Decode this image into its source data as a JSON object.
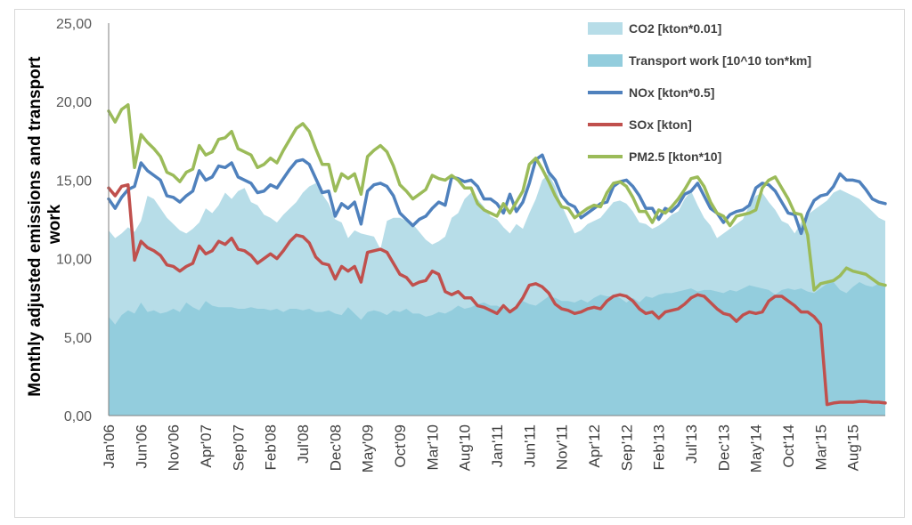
{
  "chart_data": {
    "type": "area",
    "title": "",
    "ylabel_lines": [
      "Monthly adjusted emissions  and transport",
      "work"
    ],
    "ylim": [
      0,
      25
    ],
    "yticks": [
      "0,00",
      "5,00",
      "10,00",
      "15,00",
      "20,00",
      "25,00"
    ],
    "grid": false,
    "legend_position": "top-right",
    "x_tick_labels": [
      "Jan'06",
      "Jun'06",
      "Nov'06",
      "Apr'07",
      "Sep'07",
      "Feb'08",
      "Jul'08",
      "Dec'08",
      "May'09",
      "Oct'09",
      "Mar'10",
      "Aug'10",
      "Jan'11",
      "Jun'11",
      "Nov'11",
      "Apr'12",
      "Sep'12",
      "Feb'13",
      "Jul'13",
      "Dec'13",
      "May'14",
      "Oct'14",
      "Mar'15",
      "Aug'15"
    ],
    "months": 121,
    "series": [
      {
        "name": "CO2 [kton*0.01]",
        "kind": "area",
        "color": "#b7dde8",
        "values": [
          11.8,
          11.3,
          11.6,
          12.0,
          11.7,
          12.4,
          14.0,
          13.8,
          13.2,
          12.6,
          12.2,
          11.8,
          11.6,
          11.9,
          12.3,
          13.2,
          12.9,
          13.4,
          14.2,
          13.8,
          14.3,
          14.5,
          13.6,
          13.4,
          12.8,
          12.6,
          12.3,
          12.8,
          13.2,
          13.6,
          14.2,
          14.6,
          14.8,
          14.1,
          13.5,
          12.5,
          12.3,
          11.3,
          11.8,
          11.6,
          11.5,
          11.4,
          10.6,
          12.4,
          12.6,
          12.6,
          12.4,
          12.2,
          11.7,
          11.2,
          10.9,
          11.1,
          11.4,
          12.6,
          12.9,
          13.8,
          14.2,
          13.8,
          13.3,
          12.7,
          12.5,
          12.0,
          11.6,
          12.2,
          11.9,
          12.9,
          13.8,
          15.0,
          15.4,
          14.6,
          13.4,
          12.5,
          11.6,
          11.8,
          12.2,
          12.4,
          12.6,
          13.1,
          13.6,
          13.7,
          13.5,
          13.0,
          12.3,
          12.2,
          11.9,
          12.1,
          12.4,
          12.8,
          13.0,
          13.8,
          14.3,
          13.4,
          12.6,
          12.1,
          11.3,
          11.6,
          11.9,
          12.2,
          12.5,
          13.4,
          14.0,
          14.2,
          13.6,
          13.1,
          12.4,
          12.2,
          11.6,
          12.3,
          12.8,
          13.1,
          13.4,
          13.7,
          14.2,
          14.4,
          14.2,
          14.0,
          13.8,
          13.4,
          13.0,
          12.6,
          12.4
        ]
      },
      {
        "name": "Transport work [10^10 ton*km]",
        "kind": "area",
        "color": "#93cddd",
        "values": [
          6.3,
          5.8,
          6.4,
          6.7,
          6.5,
          7.2,
          6.6,
          6.7,
          6.5,
          6.6,
          6.8,
          6.6,
          7.2,
          6.9,
          6.7,
          7.3,
          7.0,
          6.9,
          6.9,
          6.9,
          6.8,
          6.8,
          6.9,
          6.8,
          6.8,
          6.7,
          6.8,
          6.6,
          6.8,
          6.8,
          6.7,
          6.8,
          6.6,
          6.6,
          6.7,
          6.5,
          6.4,
          6.9,
          6.5,
          6.1,
          6.6,
          6.7,
          6.6,
          6.4,
          6.7,
          6.6,
          6.8,
          6.5,
          6.5,
          6.3,
          6.4,
          6.6,
          6.5,
          6.7,
          7.0,
          6.8,
          6.9,
          7.1,
          7.2,
          7.0,
          7.0,
          6.8,
          6.7,
          7.0,
          7.3,
          7.1,
          7.0,
          7.3,
          7.6,
          7.5,
          7.3,
          7.3,
          7.2,
          7.4,
          7.2,
          7.5,
          7.7,
          7.6,
          7.6,
          7.5,
          7.2,
          7.5,
          7.2,
          7.6,
          7.5,
          7.7,
          7.8,
          7.8,
          7.9,
          8.0,
          8.1,
          7.9,
          8.0,
          8.0,
          7.9,
          7.8,
          8.0,
          7.9,
          8.1,
          8.3,
          8.2,
          8.1,
          8.0,
          7.7,
          8.0,
          8.1,
          8.0,
          8.1,
          7.9,
          7.8,
          8.1,
          8.4,
          8.5,
          8.0,
          7.8,
          8.2,
          8.5,
          8.3,
          8.2,
          8.4,
          8.3
        ]
      },
      {
        "name": "NOx [kton*0.5]",
        "kind": "line",
        "color": "#4f81bd",
        "values": [
          13.8,
          13.2,
          13.9,
          14.4,
          14.6,
          16.1,
          15.6,
          15.3,
          15.0,
          14.0,
          13.9,
          13.6,
          14.0,
          14.3,
          15.6,
          15.0,
          15.2,
          15.9,
          15.8,
          16.1,
          15.2,
          15.0,
          14.8,
          14.2,
          14.3,
          14.7,
          14.5,
          15.1,
          15.7,
          16.2,
          16.3,
          16.0,
          15.1,
          14.2,
          14.3,
          12.7,
          13.5,
          13.2,
          13.6,
          12.2,
          14.3,
          14.7,
          14.8,
          14.6,
          14.0,
          12.9,
          12.5,
          12.1,
          12.5,
          12.7,
          13.2,
          13.6,
          13.4,
          15.2,
          15.1,
          14.9,
          15.0,
          14.6,
          13.8,
          13.8,
          13.5,
          12.9,
          14.1,
          13.0,
          13.6,
          14.8,
          16.3,
          16.6,
          15.5,
          15.0,
          14.0,
          13.5,
          13.3,
          12.6,
          12.9,
          13.2,
          13.5,
          13.6,
          14.6,
          14.9,
          15.0,
          14.6,
          14.0,
          13.2,
          13.2,
          12.5,
          13.2,
          13.0,
          13.4,
          14.1,
          14.3,
          14.8,
          14.0,
          13.2,
          12.9,
          12.3,
          12.8,
          13.0,
          13.1,
          13.4,
          14.5,
          14.8,
          14.7,
          14.3,
          13.6,
          12.9,
          12.8,
          11.6,
          12.9,
          13.7,
          14.0,
          14.1,
          14.6,
          15.4,
          15.0,
          15.0,
          14.9,
          14.4,
          13.8,
          13.6,
          13.5
        ]
      },
      {
        "name": "SOx [kton]",
        "kind": "line",
        "color": "#c0504d",
        "values": [
          14.5,
          14.0,
          14.6,
          14.7,
          9.9,
          11.1,
          10.7,
          10.5,
          10.2,
          9.6,
          9.5,
          9.2,
          9.5,
          9.7,
          10.8,
          10.3,
          10.5,
          11.1,
          10.9,
          11.3,
          10.6,
          10.5,
          10.2,
          9.7,
          10.0,
          10.3,
          10.0,
          10.5,
          11.1,
          11.5,
          11.4,
          11.0,
          10.1,
          9.7,
          9.6,
          8.7,
          9.5,
          9.2,
          9.5,
          8.5,
          10.4,
          10.5,
          10.6,
          10.4,
          9.7,
          9.0,
          8.8,
          8.3,
          8.5,
          8.6,
          9.2,
          9.0,
          7.9,
          7.7,
          7.9,
          7.5,
          7.5,
          7.0,
          6.9,
          6.7,
          6.5,
          7.0,
          6.6,
          6.9,
          7.5,
          8.3,
          8.4,
          8.2,
          7.8,
          7.1,
          6.8,
          6.7,
          6.5,
          6.6,
          6.8,
          6.9,
          6.8,
          7.3,
          7.6,
          7.7,
          7.6,
          7.3,
          6.8,
          6.5,
          6.6,
          6.2,
          6.6,
          6.7,
          6.8,
          7.1,
          7.5,
          7.7,
          7.6,
          7.2,
          6.8,
          6.5,
          6.4,
          6.0,
          6.4,
          6.6,
          6.5,
          6.6,
          7.3,
          7.6,
          7.6,
          7.3,
          7.0,
          6.6,
          6.6,
          6.3,
          5.8,
          0.7,
          0.8,
          0.85,
          0.85,
          0.85,
          0.9,
          0.9,
          0.85,
          0.85,
          0.8
        ]
      },
      {
        "name": "PM2.5 [kton*10]",
        "kind": "line",
        "color": "#9bbb59",
        "values": [
          19.4,
          18.7,
          19.5,
          19.8,
          15.8,
          17.9,
          17.4,
          17.0,
          16.5,
          15.5,
          15.3,
          14.9,
          15.5,
          15.7,
          17.2,
          16.6,
          16.8,
          17.6,
          17.7,
          18.1,
          17.0,
          16.8,
          16.6,
          15.8,
          16.0,
          16.4,
          16.1,
          16.9,
          17.6,
          18.3,
          18.6,
          18.1,
          17.0,
          16.0,
          16.0,
          14.3,
          15.4,
          15.1,
          15.4,
          14.1,
          16.5,
          16.9,
          17.2,
          16.8,
          15.9,
          14.7,
          14.3,
          13.8,
          14.1,
          14.4,
          15.3,
          15.1,
          15.0,
          15.3,
          15.0,
          14.5,
          14.5,
          13.5,
          13.1,
          12.9,
          12.7,
          13.5,
          12.9,
          13.6,
          14.3,
          16.0,
          16.4,
          15.7,
          14.9,
          14.0,
          13.3,
          13.2,
          12.6,
          12.9,
          13.2,
          13.4,
          13.3,
          14.2,
          14.8,
          14.9,
          14.6,
          13.9,
          13.0,
          13.0,
          12.3,
          13.1,
          12.9,
          13.3,
          13.8,
          14.4,
          15.1,
          15.2,
          14.6,
          13.6,
          12.9,
          12.7,
          12.1,
          12.7,
          12.8,
          12.9,
          13.1,
          14.5,
          15.0,
          15.2,
          14.5,
          13.8,
          12.9,
          12.8,
          11.5,
          8.0,
          8.4,
          8.5,
          8.6,
          8.9,
          9.4,
          9.2,
          9.1,
          9.0,
          8.7,
          8.4,
          8.3
        ]
      }
    ]
  }
}
